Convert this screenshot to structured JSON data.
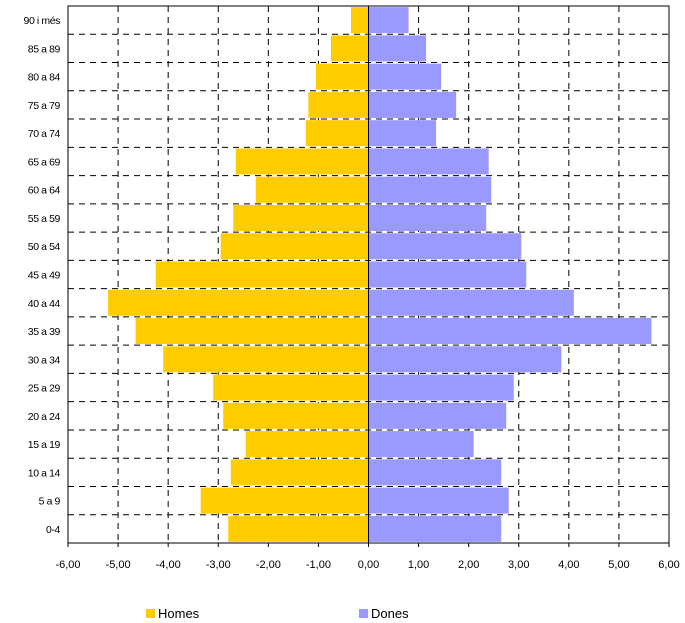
{
  "chart_data": {
    "type": "bar",
    "orientation": "horizontal",
    "categories": [
      "90 i més",
      "85 a 89",
      "80 a 84",
      "75 a 79",
      "70 a 74",
      "65 a 69",
      "60 a 64",
      "55 a 59",
      "50 a 54",
      "45 a 49",
      "40 a 44",
      "35 a 39",
      "30 a 34",
      "25 a 29",
      "20 a 24",
      "15 a 19",
      "10 a 14",
      "5 a 9",
      "0-4"
    ],
    "series": [
      {
        "name": "Homes",
        "color": "#FFCC00",
        "values": [
          -0.35,
          -0.75,
          -1.05,
          -1.2,
          -1.25,
          -2.65,
          -2.25,
          -2.7,
          -2.95,
          -4.25,
          -5.2,
          -4.65,
          -4.1,
          -3.1,
          -2.9,
          -2.45,
          -2.75,
          -3.35,
          -2.8
        ]
      },
      {
        "name": "Dones",
        "color": "#9999FF",
        "values": [
          0.8,
          1.15,
          1.45,
          1.75,
          1.35,
          2.4,
          2.45,
          2.35,
          3.05,
          3.15,
          4.1,
          5.65,
          3.85,
          2.9,
          2.75,
          2.1,
          2.65,
          2.8,
          2.65
        ]
      }
    ],
    "xlim": [
      -6,
      6
    ],
    "xticks": [
      "-6,00",
      "-5,00",
      "-4,00",
      "-3,00",
      "-2,00",
      "-1,00",
      "0,00",
      "1,00",
      "2,00",
      "3,00",
      "4,00",
      "5,00",
      "6,00"
    ],
    "grid": true,
    "legend_position": "bottom"
  }
}
